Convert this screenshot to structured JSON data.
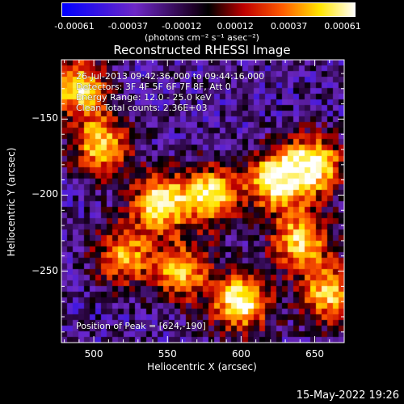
{
  "chart_data": {
    "type": "heatmap",
    "title": "Reconstructed RHESSI Image",
    "xlabel": "Heliocentric X (arcsec)",
    "ylabel": "Heliocentric Y (arcsec)",
    "xlim": [
      478,
      670
    ],
    "ylim": [
      -297,
      -111
    ],
    "x_ticks": [
      500,
      550,
      600,
      650
    ],
    "y_ticks": [
      -150,
      -200,
      -250
    ],
    "colorbar": {
      "ticks": [
        "-0.00061",
        "-0.00037",
        "-0.00012",
        "0.00012",
        "0.00037",
        "0.00061"
      ],
      "range": [
        -0.00061,
        0.00061
      ],
      "units": "(photons cm⁻² s⁻¹ asec⁻²)"
    },
    "annotations": [
      "26-Jul-2013 09:42:36.000 to 09:44:16.000",
      "Detectors: 3F 4F 5F 6F 7F 8F, Att 0",
      "Energy Range: 12.0 - 25.0 keV",
      "Clean    Total counts: 2.36E+03"
    ],
    "peak_label": "Position of Peak = [624,-190]",
    "peak_position": [
      624,
      -190
    ],
    "bright_regions": [
      {
        "x": 490,
        "y": -130,
        "intensity": 0.9
      },
      {
        "x": 505,
        "y": -168,
        "intensity": 0.85
      },
      {
        "x": 545,
        "y": -205,
        "intensity": 0.95
      },
      {
        "x": 580,
        "y": -200,
        "intensity": 0.9
      },
      {
        "x": 624,
        "y": -190,
        "intensity": 1.0
      },
      {
        "x": 650,
        "y": -180,
        "intensity": 0.95
      },
      {
        "x": 640,
        "y": -230,
        "intensity": 0.85
      },
      {
        "x": 600,
        "y": -270,
        "intensity": 1.0
      },
      {
        "x": 560,
        "y": -250,
        "intensity": 0.8
      },
      {
        "x": 520,
        "y": -240,
        "intensity": 0.75
      },
      {
        "x": 660,
        "y": -265,
        "intensity": 0.85
      }
    ]
  },
  "footer": {
    "date": "15-May-2022 19:26"
  }
}
